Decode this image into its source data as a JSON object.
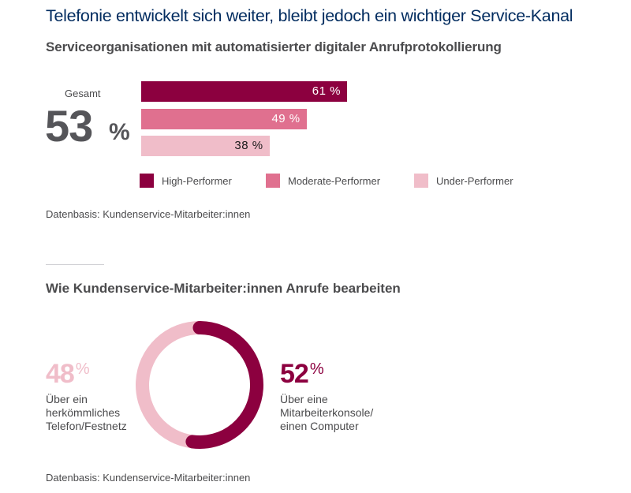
{
  "title": "Telefonie entwickelt sich weiter, bleibt jedoch ein wichtiger Service-Kanal",
  "colors": {
    "title": "#032d60",
    "high": "#8c003f",
    "moderate": "#e0708f",
    "under": "#f0bdc9",
    "text": "#4b4b4d"
  },
  "chart_data": [
    {
      "type": "bar",
      "orientation": "horizontal",
      "title": "Serviceorganisationen mit automatisierter digitaler Anrufprotokollierung",
      "overall": {
        "label": "Gesamt",
        "value": 53,
        "value_text": "53",
        "unit": "%"
      },
      "categories": [
        "High-Performer",
        "Moderate-Performer",
        "Under-Performer"
      ],
      "values": [
        61,
        49,
        38
      ],
      "data_labels": [
        "61 %",
        "49 %",
        "38 %"
      ],
      "colors": [
        "#8c003f",
        "#e0708f",
        "#f0bdc9"
      ],
      "label_colors": [
        "#ffffff",
        "#ffffff",
        "#1a1a1a"
      ],
      "xlim": [
        0,
        100
      ],
      "grid": false,
      "legend": {
        "placement": "bottom",
        "entries": [
          {
            "label": "High-Performer",
            "color": "#8c003f"
          },
          {
            "label": "Moderate-Performer",
            "color": "#e0708f"
          },
          {
            "label": "Under-Performer",
            "color": "#f0bdc9"
          }
        ]
      },
      "source": "Datenbasis: Kundenservice-Mitarbeiter:innen"
    },
    {
      "type": "pie",
      "style": "donut",
      "title": "Wie Kundenservice-Mitarbeiter:innen Anrufe bearbeiten",
      "slices": [
        {
          "label": "Über eine Mitarbeiterkonsole/ einen Computer",
          "value": 52,
          "value_text": "52",
          "unit": "%",
          "color": "#8c003f",
          "desc_lines": [
            "Über eine",
            "Mitarbeiterkonsole/",
            "einen Computer"
          ]
        },
        {
          "label": "Über ein herkömmliches Telefon/Festnetz",
          "value": 48,
          "value_text": "48",
          "unit": "%",
          "color": "#f0bdc9",
          "desc_lines": [
            "Über ein",
            "herkömmliches",
            "Telefon/Festnetz"
          ]
        }
      ],
      "source": "Datenbasis: Kundenservice-Mitarbeiter:innen"
    }
  ]
}
